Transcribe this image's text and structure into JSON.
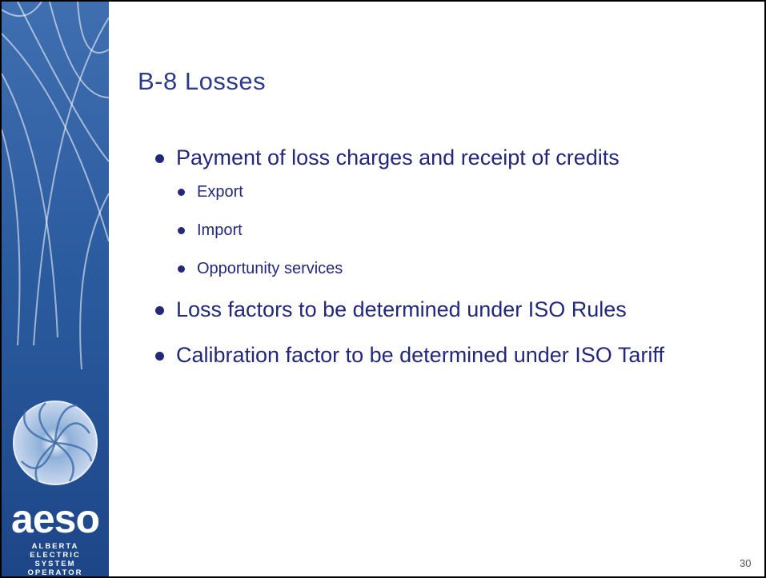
{
  "title": "B-8 Losses",
  "bullets": [
    {
      "text": "Payment of loss charges and receipt of credits",
      "sub": [
        "Export",
        "Import",
        "Opportunity services"
      ]
    },
    {
      "text": "Loss factors to be determined under ISO Rules"
    },
    {
      "text": "Calibration factor to be determined under ISO Tariff"
    }
  ],
  "logo": {
    "name": "aeso",
    "lines": [
      "ALBERTA",
      "ELECTRIC",
      "SYSTEM",
      "OPERATOR"
    ]
  },
  "page_number": "30"
}
